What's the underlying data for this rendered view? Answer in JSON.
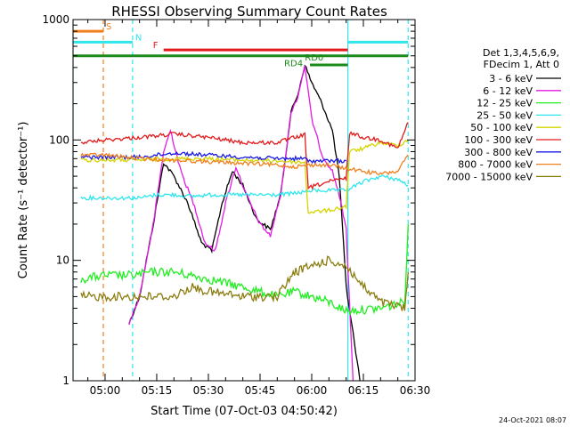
{
  "chart_data": {
    "type": "line",
    "title": "RHESSI Observing Summary Count Rates",
    "xlabel": "Start Time (07-Oct-03 04:50:42)",
    "ylabel": "Count Rate (s⁻¹ detector⁻¹)",
    "xlim": [
      "04:50:42",
      "06:30:00"
    ],
    "ylim": [
      1,
      1000
    ],
    "yscale": "log",
    "x_ticks": [
      "05:00",
      "05:15",
      "05:30",
      "05:45",
      "06:00",
      "06:15",
      "06:30"
    ],
    "y_ticks": [
      "1",
      "10",
      "100",
      "1000"
    ],
    "legend_header": [
      "Det 1,3,4,5,6,9,",
      "FDecim 1, Att 0"
    ],
    "legend_position": "right",
    "timestamp": "24-Oct-2021 08:07",
    "flag_bars": [
      {
        "label": "S",
        "color": "#f07f1e",
        "start": "04:50:42",
        "end": "04:59:30",
        "level": 800
      },
      {
        "label": "N",
        "color": "#2fe6ec",
        "start": "04:50:42",
        "end": "05:08:00",
        "level": 650
      },
      {
        "label": "N",
        "color": "#2fe6ec",
        "start": "06:10:30",
        "end": "06:28:00",
        "level": 650
      },
      {
        "label": "F",
        "color": "#e31a1c",
        "start": "05:17:00",
        "end": "06:10:30",
        "level": 560
      },
      {
        "label": "RD0",
        "color": "#1a8a1a",
        "start": "05:59:30",
        "end": "06:10:30",
        "level": 420
      },
      {
        "label": "RD4",
        "color": "#1a8a1a",
        "start": "04:50:42",
        "end": "06:28:00",
        "level": 500
      }
    ],
    "vertical_markers": [
      {
        "time": "04:50:42",
        "color": "#2fe6ec",
        "style": "solid"
      },
      {
        "time": "04:59:30",
        "color": "#f07f1e",
        "style": "dashed"
      },
      {
        "time": "05:08:00",
        "color": "#2fe6ec",
        "style": "dashed"
      },
      {
        "time": "06:10:30",
        "color": "#2fe6ec",
        "style": "solid"
      },
      {
        "time": "06:28:00",
        "color": "#2fe6ec",
        "style": "dashed"
      }
    ],
    "series": [
      {
        "name": "3 - 6 keV",
        "color": "#000000",
        "points": [
          [
            "05:07",
            3
          ],
          [
            "05:10",
            5
          ],
          [
            "05:14",
            20
          ],
          [
            "05:17",
            65
          ],
          [
            "05:20",
            50
          ],
          [
            "05:24",
            30
          ],
          [
            "05:28",
            14
          ],
          [
            "05:31",
            12
          ],
          [
            "05:34",
            30
          ],
          [
            "05:37",
            55
          ],
          [
            "05:40",
            42
          ],
          [
            "05:44",
            22
          ],
          [
            "05:48",
            18
          ],
          [
            "05:51",
            35
          ],
          [
            "05:54",
            170
          ],
          [
            "05:56",
            240
          ],
          [
            "05:58",
            420
          ],
          [
            "06:00",
            300
          ],
          [
            "06:03",
            200
          ],
          [
            "06:06",
            120
          ],
          [
            "06:08",
            50
          ],
          [
            "06:10",
            6
          ],
          [
            "06:12",
            2.5
          ],
          [
            "06:14",
            1
          ]
        ]
      },
      {
        "name": "6 - 12 keV",
        "color": "#e21ce2",
        "points": [
          [
            "05:07",
            3
          ],
          [
            "05:10",
            5
          ],
          [
            "05:14",
            20
          ],
          [
            "05:17",
            80
          ],
          [
            "05:19",
            120
          ],
          [
            "05:22",
            55
          ],
          [
            "05:26",
            28
          ],
          [
            "05:29",
            14
          ],
          [
            "05:32",
            12
          ],
          [
            "05:35",
            30
          ],
          [
            "05:38",
            60
          ],
          [
            "05:41",
            35
          ],
          [
            "05:45",
            20
          ],
          [
            "05:48",
            16
          ],
          [
            "05:51",
            35
          ],
          [
            "05:54",
            170
          ],
          [
            "05:56",
            230
          ],
          [
            "05:58",
            420
          ],
          [
            "06:00",
            150
          ],
          [
            "06:03",
            75
          ],
          [
            "06:06",
            55
          ],
          [
            "06:08",
            35
          ],
          [
            "06:10",
            18
          ],
          [
            "06:12",
            1
          ]
        ]
      },
      {
        "name": "12 - 25 keV",
        "color": "#22ee22",
        "points": [
          [
            "04:53",
            7
          ],
          [
            "05:00",
            7.5
          ],
          [
            "05:08",
            7.5
          ],
          [
            "05:14",
            8
          ],
          [
            "05:20",
            8
          ],
          [
            "05:30",
            7
          ],
          [
            "05:40",
            6
          ],
          [
            "05:50",
            5
          ],
          [
            "05:55",
            5.5
          ],
          [
            "06:00",
            5
          ],
          [
            "06:05",
            4.5
          ],
          [
            "06:10",
            3.8
          ],
          [
            "06:20",
            4
          ],
          [
            "06:27",
            4.5
          ],
          [
            "06:28",
            20
          ]
        ]
      },
      {
        "name": "25 - 50 keV",
        "color": "#2fe6ec",
        "points": [
          [
            "04:53",
            33
          ],
          [
            "05:00",
            33
          ],
          [
            "05:10",
            33
          ],
          [
            "05:15",
            35
          ],
          [
            "05:20",
            35
          ],
          [
            "05:25",
            34
          ],
          [
            "05:30",
            35
          ],
          [
            "05:40",
            35
          ],
          [
            "05:50",
            35
          ],
          [
            "05:55",
            36
          ],
          [
            "06:00",
            38
          ],
          [
            "06:05",
            38
          ],
          [
            "06:10",
            38
          ],
          [
            "06:15",
            45
          ],
          [
            "06:20",
            50
          ],
          [
            "06:25",
            47
          ],
          [
            "06:28",
            42
          ]
        ]
      },
      {
        "name": "50 - 100 keV",
        "color": "#d4d400",
        "points": [
          [
            "04:53",
            68
          ],
          [
            "05:00",
            68
          ],
          [
            "05:10",
            68
          ],
          [
            "05:20",
            70
          ],
          [
            "05:30",
            70
          ],
          [
            "05:40",
            68
          ],
          [
            "05:50",
            67
          ],
          [
            "05:58",
            65
          ],
          [
            "05:59",
            25
          ],
          [
            "06:05",
            26
          ],
          [
            "06:10",
            28
          ],
          [
            "06:11",
            80
          ],
          [
            "06:15",
            85
          ],
          [
            "06:20",
            95
          ],
          [
            "06:25",
            90
          ],
          [
            "06:28",
            100
          ]
        ]
      },
      {
        "name": "100 - 300 keV",
        "color": "#e31a1c",
        "points": [
          [
            "04:53",
            95
          ],
          [
            "05:00",
            100
          ],
          [
            "05:10",
            105
          ],
          [
            "05:20",
            112
          ],
          [
            "05:30",
            105
          ],
          [
            "05:40",
            95
          ],
          [
            "05:50",
            95
          ],
          [
            "05:55",
            105
          ],
          [
            "05:58",
            110
          ],
          [
            "05:59",
            40
          ],
          [
            "06:05",
            45
          ],
          [
            "06:10",
            48
          ],
          [
            "06:11",
            115
          ],
          [
            "06:15",
            105
          ],
          [
            "06:20",
            100
          ],
          [
            "06:25",
            85
          ],
          [
            "06:28",
            140
          ]
        ]
      },
      {
        "name": "300 - 800 keV",
        "color": "#1a1ae6",
        "points": [
          [
            "04:53",
            72
          ],
          [
            "05:00",
            72
          ],
          [
            "05:10",
            72
          ],
          [
            "05:20",
            78
          ],
          [
            "05:30",
            75
          ],
          [
            "05:40",
            72
          ],
          [
            "05:50",
            70
          ],
          [
            "05:58",
            70
          ],
          [
            "05:59",
            67
          ],
          [
            "06:10",
            67
          ]
        ]
      },
      {
        "name": "800 - 7000 keV",
        "color": "#f07f1e",
        "points": [
          [
            "04:53",
            75
          ],
          [
            "05:00",
            75
          ],
          [
            "05:10",
            70
          ],
          [
            "05:20",
            68
          ],
          [
            "05:30",
            66
          ],
          [
            "05:40",
            64
          ],
          [
            "05:50",
            62
          ],
          [
            "05:55",
            60
          ],
          [
            "06:00",
            62
          ],
          [
            "06:05",
            62
          ],
          [
            "06:10",
            58
          ],
          [
            "06:15",
            55
          ],
          [
            "06:20",
            52
          ],
          [
            "06:25",
            55
          ],
          [
            "06:28",
            75
          ]
        ]
      },
      {
        "name": "7000 - 15000 keV",
        "color": "#8b7d10",
        "points": [
          [
            "04:53",
            5
          ],
          [
            "05:00",
            5
          ],
          [
            "05:10",
            5
          ],
          [
            "05:20",
            5
          ],
          [
            "05:25",
            6
          ],
          [
            "05:30",
            5.5
          ],
          [
            "05:40",
            5
          ],
          [
            "05:50",
            5
          ],
          [
            "05:55",
            8
          ],
          [
            "06:00",
            9
          ],
          [
            "06:05",
            10
          ],
          [
            "06:10",
            9
          ],
          [
            "06:15",
            6
          ],
          [
            "06:20",
            4.5
          ],
          [
            "06:27",
            4
          ],
          [
            "06:28",
            8
          ]
        ]
      }
    ]
  }
}
